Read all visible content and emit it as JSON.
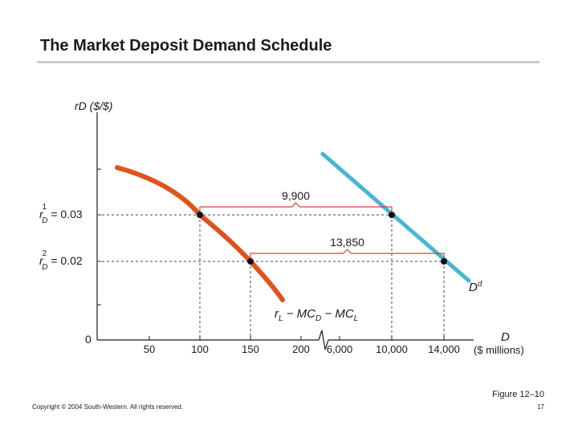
{
  "slide": {
    "title": "The Market Deposit Demand Schedule",
    "figure_caption": "Figure 12–10",
    "copyright": "Copyright © 2004 South-Western. All rights reserved.",
    "page_number": "17"
  },
  "colors": {
    "lending_curve": "#e0521e",
    "demand_curve": "#49b6d3",
    "bracket": "#d64040",
    "axis": "#1a1a1a"
  },
  "chart_data": {
    "type": "line",
    "title": "The Market Deposit Demand Schedule",
    "ylabel": "rD ($/$)",
    "xlabel": "D",
    "xlabel_units": "($ millions)",
    "x_axis_break_between": [
      "200",
      "6,000"
    ],
    "x_ticks": [
      "50",
      "100",
      "150",
      "200",
      "6,000",
      "10,000",
      "14,000"
    ],
    "y_origin_label": "0",
    "y_ticks": [
      {
        "sym": "r",
        "sup": "1",
        "sub": "D",
        "rest": " = 0.03",
        "value": 0.03
      },
      {
        "sym": "r",
        "sup": "2",
        "sub": "D",
        "rest": " = 0.02",
        "value": 0.02
      }
    ],
    "series": [
      {
        "name": "rL − MCD − MCL",
        "label_parts": [
          "r",
          "L",
          " − MC",
          "D",
          " − MC",
          "L"
        ],
        "points": [
          {
            "x": "100",
            "y": 0.03
          },
          {
            "x": "150",
            "y": 0.02
          }
        ]
      },
      {
        "name": "Dd",
        "label_parts": [
          "D",
          "d"
        ],
        "points": [
          {
            "x": "10,000",
            "y": 0.03
          },
          {
            "x": "14,000",
            "y": 0.02
          }
        ]
      }
    ],
    "annotations": [
      {
        "label": "9,900",
        "y": 0.03,
        "from_x": "100",
        "to_x": "10,000"
      },
      {
        "label": "13,850",
        "y": 0.02,
        "from_x": "150",
        "to_x": "14,000"
      }
    ]
  }
}
